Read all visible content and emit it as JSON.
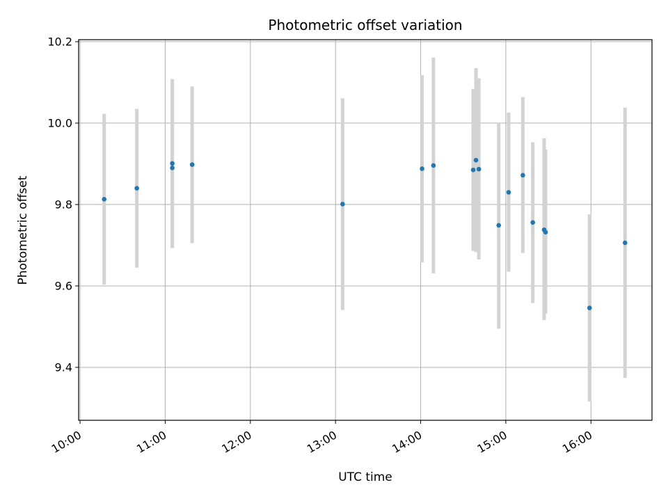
{
  "chart_data": {
    "type": "scatter",
    "title": "Photometric offset variation",
    "xlabel": "UTC time",
    "ylabel": "Photometric offset",
    "x_tick_labels": [
      "10:00",
      "11:00",
      "12:00",
      "13:00",
      "14:00",
      "15:00",
      "16:00"
    ],
    "y_tick_labels": [
      "9.4",
      "9.6",
      "9.8",
      "10.0",
      "10.2"
    ],
    "x_ticks": [
      "10:00",
      "11:00",
      "12:00",
      "13:00",
      "14:00",
      "15:00",
      "16:00"
    ],
    "y_ticks": [
      9.4,
      9.6,
      9.8,
      10.0,
      10.2
    ],
    "xlim": [
      "09:59",
      "16:43"
    ],
    "ylim": [
      9.27,
      10.205
    ],
    "grid": true,
    "point_color": "#1f77b4",
    "errorbar_color": "#d3d3d3",
    "points": [
      {
        "x": "10:17",
        "y": 9.813,
        "err_low": 9.603,
        "err_high": 10.023
      },
      {
        "x": "10:40",
        "y": 9.84,
        "err_low": 9.645,
        "err_high": 10.035
      },
      {
        "x": "11:05",
        "y": 9.89,
        "err_low": 9.693,
        "err_high": 10.108
      },
      {
        "x": "11:05",
        "y": 9.901,
        "err_low": 9.693,
        "err_high": 10.108
      },
      {
        "x": "11:19",
        "y": 9.898,
        "err_low": 9.705,
        "err_high": 10.09
      },
      {
        "x": "13:05",
        "y": 9.801,
        "err_low": 9.541,
        "err_high": 10.061
      },
      {
        "x": "14:01",
        "y": 9.888,
        "err_low": 9.658,
        "err_high": 10.118
      },
      {
        "x": "14:09",
        "y": 9.896,
        "err_low": 9.631,
        "err_high": 10.161
      },
      {
        "x": "14:37",
        "y": 9.885,
        "err_low": 9.686,
        "err_high": 10.084
      },
      {
        "x": "14:39",
        "y": 9.909,
        "err_low": 9.683,
        "err_high": 10.135
      },
      {
        "x": "14:41",
        "y": 9.887,
        "err_low": 9.665,
        "err_high": 10.11
      },
      {
        "x": "14:55",
        "y": 9.749,
        "err_low": 9.495,
        "err_high": 10.0
      },
      {
        "x": "15:02",
        "y": 9.83,
        "err_low": 9.635,
        "err_high": 10.026
      },
      {
        "x": "15:12",
        "y": 9.872,
        "err_low": 9.681,
        "err_high": 10.064
      },
      {
        "x": "15:19",
        "y": 9.756,
        "err_low": 9.558,
        "err_high": 9.953
      },
      {
        "x": "15:27",
        "y": 9.738,
        "err_low": 9.516,
        "err_high": 9.963
      },
      {
        "x": "15:28",
        "y": 9.732,
        "err_low": 9.532,
        "err_high": 9.935
      },
      {
        "x": "15:59",
        "y": 9.546,
        "err_low": 9.316,
        "err_high": 9.776
      },
      {
        "x": "16:24",
        "y": 9.706,
        "err_low": 9.374,
        "err_high": 10.038
      }
    ]
  }
}
